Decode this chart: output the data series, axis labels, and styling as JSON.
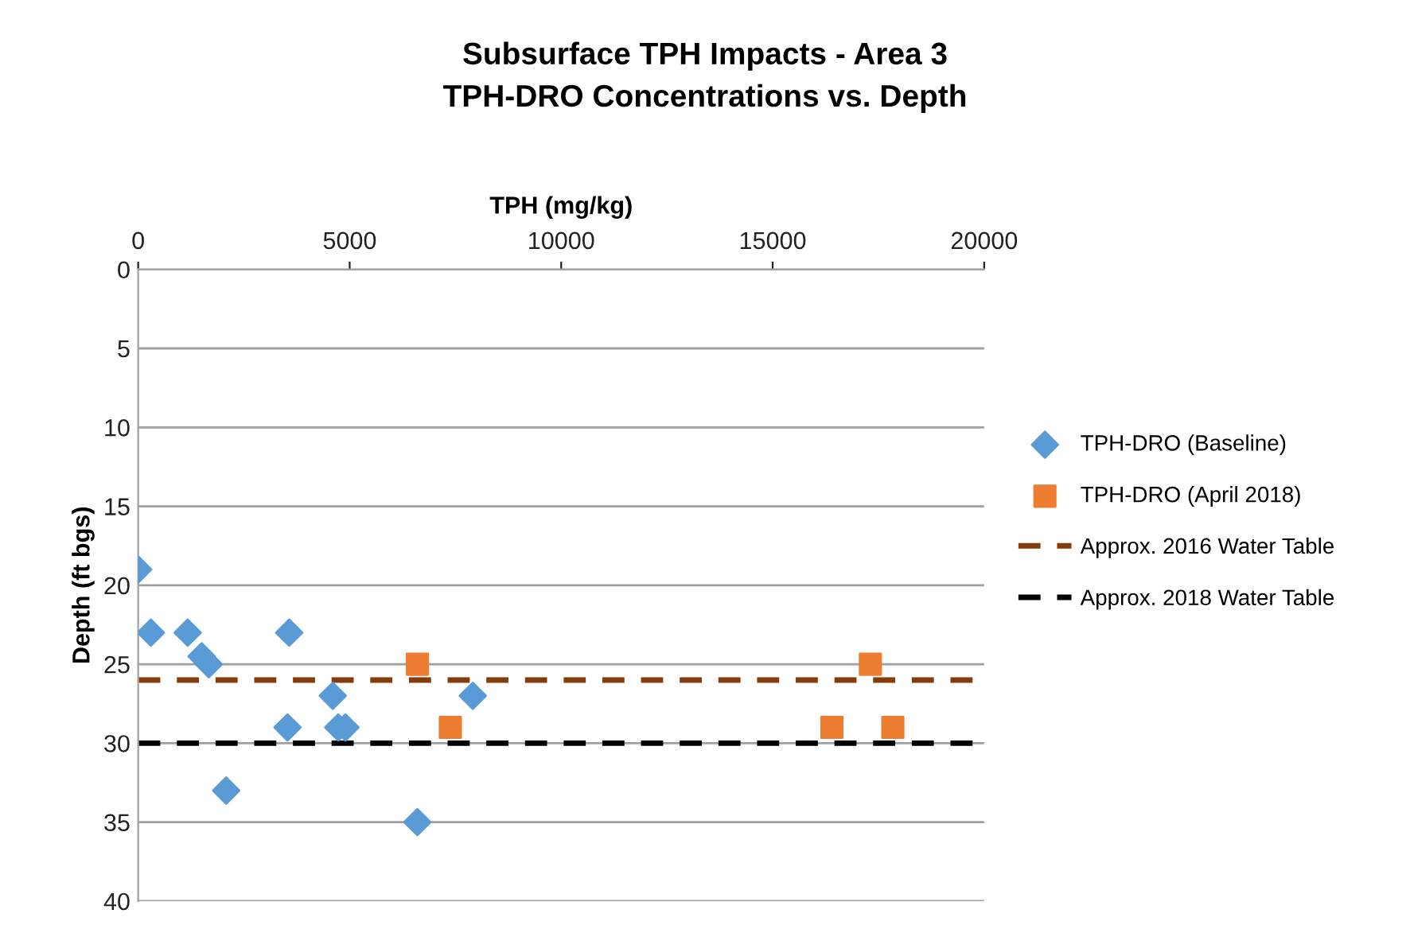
{
  "chart_data": {
    "type": "scatter",
    "title": "Subsurface TPH Impacts - Area 3\nTPH-DRO Concentrations vs. Depth",
    "xlabel": "TPH (mg/kg)",
    "ylabel": "Depth (ft bgs)",
    "series": [
      {
        "name": "TPH-DRO (Baseline)",
        "color": "#5b9bd5",
        "marker": "diamond",
        "x": [
          0,
          300,
          1170,
          1500,
          1670,
          2080,
          3570,
          3530,
          4600,
          4730,
          4900,
          6600,
          7910
        ],
        "values": [
          19,
          23,
          23,
          24.5,
          25,
          33,
          23,
          29,
          27,
          29,
          29,
          35,
          27
        ]
      },
      {
        "name": "TPH-DRO (April 2018)",
        "color": "#ed7d31",
        "marker": "square",
        "x": [
          6600,
          7380,
          16400,
          17310,
          17840
        ],
        "values": [
          25,
          29,
          29,
          25,
          29
        ]
      }
    ],
    "ref_lines": [
      {
        "axis": "y",
        "value": 26,
        "label": "Approx. 2016 Water Table",
        "color": "#843c0c",
        "line_style": "dashed"
      },
      {
        "axis": "y",
        "value": 30,
        "label": "Approx. 2018 Water Table",
        "color": "#000000",
        "line_style": "dashed"
      }
    ],
    "xlim": [
      0,
      20000
    ],
    "xticks": [
      0,
      5000,
      10000,
      15000,
      20000
    ],
    "ylim": [
      40,
      0
    ],
    "yticks": [
      0,
      5,
      10,
      15,
      20,
      25,
      30,
      35,
      40
    ],
    "grid": "y",
    "legend": "right"
  }
}
